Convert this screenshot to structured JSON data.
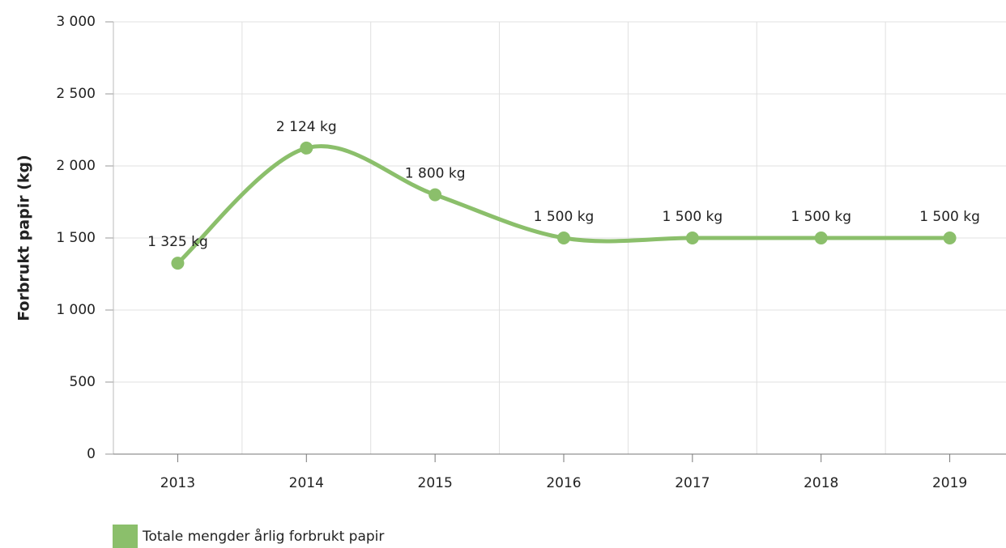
{
  "chart_data": {
    "type": "line",
    "y_label": "Forbrukt papir (kg)",
    "categories": [
      "2013",
      "2014",
      "2015",
      "2016",
      "2017",
      "2018",
      "2019"
    ],
    "series": [
      {
        "name": "Totale mengder årlig forbrukt papir",
        "color": "#8bbf6b",
        "values": [
          1325,
          2124,
          1800,
          1500,
          1500,
          1500,
          1500
        ],
        "value_labels": [
          "1 325 kg",
          "2 124 kg",
          "1 800 kg",
          "1 500 kg",
          "1 500 kg",
          "1 500 kg",
          "1 500 kg"
        ]
      }
    ],
    "ylim": [
      0,
      3000
    ],
    "yticks": [
      0,
      500,
      {
        "value": 1000,
        "label": "1 000"
      },
      {
        "value": 1500,
        "label": "1 500"
      },
      {
        "value": 2000,
        "label": "2 000"
      },
      {
        "value": 2500,
        "label": "2 500"
      },
      {
        "value": 3000,
        "label": "3 000"
      }
    ],
    "grid": true,
    "smooth": true,
    "legend": "bottom-left"
  }
}
